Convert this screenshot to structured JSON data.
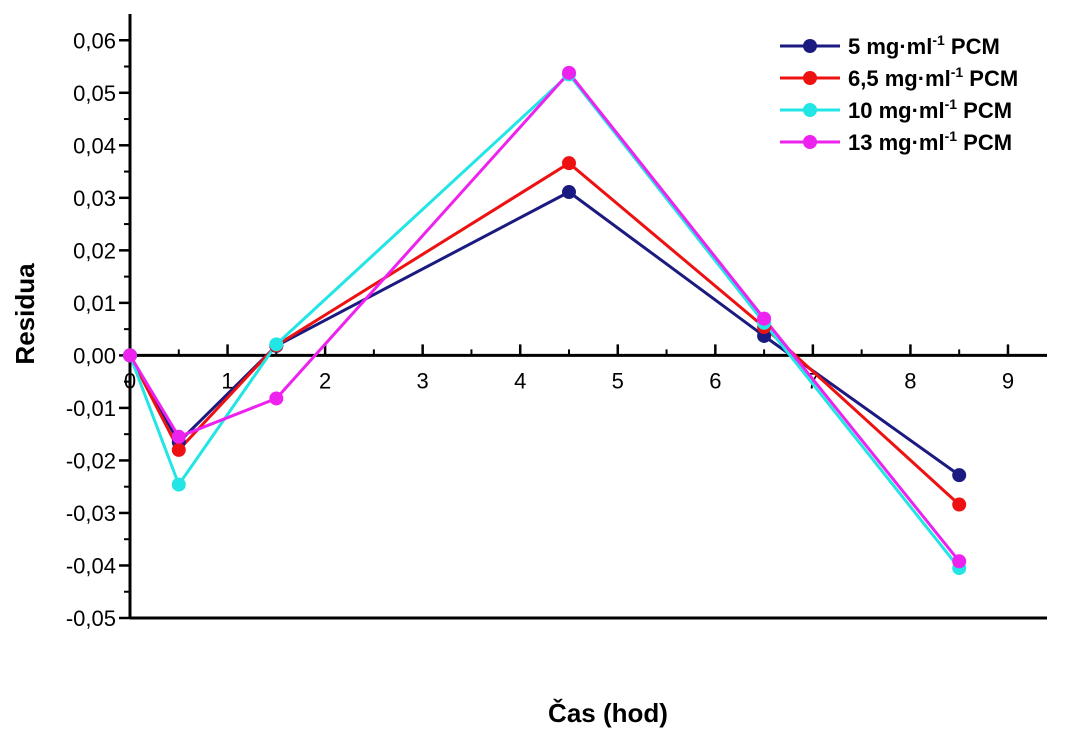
{
  "chart_data": {
    "type": "line",
    "title": "",
    "xlabel": "Čas (hod)",
    "ylabel": "Residua",
    "xlim": [
      0,
      9.4
    ],
    "ylim": [
      -0.05,
      0.065
    ],
    "x_ticks": [
      0,
      1,
      2,
      3,
      4,
      5,
      6,
      7,
      8,
      9
    ],
    "x_tick_labels": [
      "0",
      "1",
      "2",
      "3",
      "4",
      "5",
      "6",
      "7",
      "8",
      "9"
    ],
    "y_ticks": [
      -0.05,
      -0.04,
      -0.03,
      -0.02,
      -0.01,
      0,
      0.01,
      0.02,
      0.03,
      0.04,
      0.05,
      0.06
    ],
    "y_tick_labels": [
      "-0,05",
      "-0,04",
      "-0,03",
      "-0,02",
      "-0,01",
      "0,00",
      "0,01",
      "0,02",
      "0,03",
      "0,04",
      "0,05",
      "0,06"
    ],
    "x": [
      0,
      0.5,
      1.5,
      4.5,
      6.5,
      8.5
    ],
    "series": [
      {
        "name": "5 mg·ml-1 PCM",
        "label_main": "5 mg·ml",
        "label_sup": "-1",
        "label_tail": " PCM",
        "color": "#1a1a80",
        "values": [
          0,
          -0.0165,
          0.0018,
          0.0311,
          0.0037,
          -0.0228
        ]
      },
      {
        "name": "6,5 mg·ml-1 PCM",
        "label_main": "6,5 mg·ml",
        "label_sup": "-1",
        "label_tail": " PCM",
        "color": "#ee1111",
        "values": [
          0,
          -0.018,
          0.0019,
          0.0366,
          0.0054,
          -0.0284
        ]
      },
      {
        "name": "10 mg·ml-1 PCM",
        "label_main": "10 mg·ml",
        "label_sup": "-1",
        "label_tail": " PCM",
        "color": "#22e5e5",
        "values": [
          0,
          -0.0246,
          0.0021,
          0.0535,
          0.0062,
          -0.0405
        ]
      },
      {
        "name": "13 mg·ml-1 PCM",
        "label_main": "13 mg·ml",
        "label_sup": "-1",
        "label_tail": " PCM",
        "color": "#ee22ee",
        "values": [
          0,
          -0.0155,
          -0.0082,
          0.0538,
          0.007,
          -0.0392
        ]
      }
    ],
    "legend_position": "top-right",
    "grid": false
  }
}
